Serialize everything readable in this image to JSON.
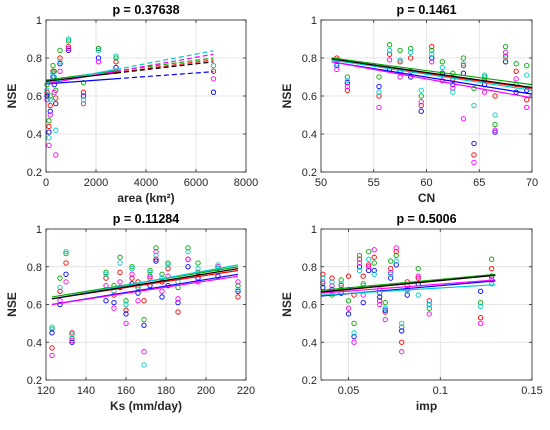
{
  "chart_data": [
    {
      "type": "scatter",
      "title": "p = 0.37638",
      "xlabel": "area (km²)",
      "ylabel": "NSE",
      "xlim": [
        0,
        8000
      ],
      "ylim": [
        0.2,
        1.0
      ],
      "xticks": [
        0,
        2000,
        4000,
        6000,
        8000
      ],
      "xtick_labels": [
        "0",
        "2000",
        "4000",
        "6000",
        "8000"
      ],
      "yticks": [
        0.2,
        0.4,
        0.6,
        0.8,
        1.0
      ],
      "ytick_labels": [
        "0.2",
        "0.4",
        "0.6",
        "0.8",
        "1"
      ],
      "grid": true,
      "x_positions": [
        40,
        120,
        170,
        280,
        330,
        390,
        560,
        900,
        1500,
        2100,
        2800,
        6700
      ],
      "series": [
        {
          "color": "#ff0000",
          "values": [
            0.62,
            0.44,
            0.55,
            0.73,
            0.68,
            0.59,
            0.8,
            0.86,
            0.62,
            0.85,
            0.78,
            0.73
          ]
        },
        {
          "color": "#00aa00",
          "values": [
            0.66,
            0.47,
            0.6,
            0.76,
            0.73,
            0.63,
            0.84,
            0.89,
            0.67,
            0.85,
            0.8,
            0.76
          ]
        },
        {
          "color": "#0000ff",
          "values": [
            0.6,
            0.41,
            0.52,
            0.7,
            0.66,
            0.56,
            0.77,
            0.84,
            0.6,
            0.8,
            0.75,
            0.62
          ]
        },
        {
          "color": "#ff00ff",
          "values": [
            0.58,
            0.34,
            0.5,
            0.68,
            0.62,
            0.29,
            0.73,
            0.85,
            0.56,
            0.78,
            0.73,
            0.69
          ]
        },
        {
          "color": "#00cccc",
          "values": [
            0.63,
            0.38,
            0.58,
            0.72,
            0.7,
            0.42,
            0.78,
            0.9,
            0.58,
            0.84,
            0.81,
            0.76
          ]
        }
      ],
      "fit_lines": [
        {
          "color": "#ff0000",
          "x": [
            0,
            6700
          ],
          "y": [
            0.676,
            0.79
          ],
          "dashed_from": 2800
        },
        {
          "color": "#00aa00",
          "x": [
            0,
            6700
          ],
          "y": [
            0.684,
            0.8
          ],
          "dashed_from": 2800
        },
        {
          "color": "#0000ff",
          "x": [
            0,
            6700
          ],
          "y": [
            0.664,
            0.728
          ],
          "dashed_from": 2800
        },
        {
          "color": "#ff00ff",
          "x": [
            0,
            6700
          ],
          "y": [
            0.664,
            0.82
          ],
          "dashed_from": 2800
        },
        {
          "color": "#00cccc",
          "x": [
            0,
            6700
          ],
          "y": [
            0.67,
            0.838
          ],
          "dashed_from": 2800
        },
        {
          "color": "#000000",
          "x": [
            0,
            6700
          ],
          "y": [
            0.678,
            0.78
          ],
          "dashed_from": 2800
        }
      ]
    },
    {
      "type": "scatter",
      "title": "p = 0.1461",
      "xlabel": "CN",
      "ylabel": "NSE",
      "xlim": [
        50,
        70
      ],
      "ylim": [
        0.2,
        1.0
      ],
      "xticks": [
        50,
        55,
        60,
        65,
        70
      ],
      "xtick_labels": [
        "50",
        "55",
        "60",
        "65",
        "70"
      ],
      "yticks": [
        0.2,
        0.4,
        0.6,
        0.8,
        1.0
      ],
      "ytick_labels": [
        "0.2",
        "0.4",
        "0.6",
        "0.8",
        "1"
      ],
      "grid": true,
      "x_positions": [
        51.5,
        52.5,
        55.5,
        56.5,
        57.5,
        58.5,
        59.5,
        60.5,
        61.5,
        62.5,
        63.5,
        64.5,
        65.5,
        66.5,
        67.5,
        68.5,
        69.5
      ],
      "series": [
        {
          "color": "#ff0000",
          "values": [
            0.8,
            0.63,
            0.6,
            0.82,
            0.78,
            0.8,
            0.55,
            0.86,
            0.71,
            0.69,
            0.76,
            0.29,
            0.68,
            0.6,
            0.81,
            0.73,
            0.58
          ]
        },
        {
          "color": "#00aa00",
          "values": [
            0.79,
            0.7,
            0.7,
            0.87,
            0.84,
            0.85,
            0.6,
            0.84,
            0.78,
            0.72,
            0.8,
            0.64,
            0.7,
            0.45,
            0.86,
            0.77,
            0.76
          ]
        },
        {
          "color": "#0000ff",
          "values": [
            0.76,
            0.67,
            0.65,
            0.74,
            0.73,
            0.7,
            0.52,
            0.8,
            0.72,
            0.66,
            0.72,
            0.35,
            0.66,
            0.41,
            0.78,
            0.62,
            0.63
          ]
        },
        {
          "color": "#ff00ff",
          "values": [
            0.74,
            0.65,
            0.54,
            0.79,
            0.7,
            0.73,
            0.57,
            0.78,
            0.68,
            0.64,
            0.48,
            0.25,
            0.62,
            0.42,
            0.83,
            0.69,
            0.54
          ]
        },
        {
          "color": "#00cccc",
          "values": [
            0.77,
            0.68,
            0.62,
            0.84,
            0.79,
            0.83,
            0.63,
            0.82,
            0.75,
            0.62,
            0.77,
            0.55,
            0.71,
            0.5,
            0.8,
            0.66,
            0.71
          ]
        }
      ],
      "fit_lines": [
        {
          "color": "#ff0000",
          "x": [
            51,
            70
          ],
          "y": [
            0.79,
            0.64
          ]
        },
        {
          "color": "#00aa00",
          "x": [
            51,
            70
          ],
          "y": [
            0.8,
            0.66
          ]
        },
        {
          "color": "#0000ff",
          "x": [
            51,
            70
          ],
          "y": [
            0.78,
            0.61
          ]
        },
        {
          "color": "#ff00ff",
          "x": [
            51,
            70
          ],
          "y": [
            0.78,
            0.59
          ]
        },
        {
          "color": "#00cccc",
          "x": [
            51,
            70
          ],
          "y": [
            0.79,
            0.63
          ]
        },
        {
          "color": "#000000",
          "x": [
            51,
            70
          ],
          "y": [
            0.795,
            0.645
          ]
        }
      ]
    },
    {
      "type": "scatter",
      "title": "p = 0.11284",
      "xlabel": "Ks (mm/day)",
      "ylabel": "NSE",
      "xlim": [
        120,
        220
      ],
      "ylim": [
        0.2,
        1.0
      ],
      "xticks": [
        120,
        140,
        160,
        180,
        200,
        220
      ],
      "xtick_labels": [
        "120",
        "140",
        "160",
        "180",
        "200",
        "220"
      ],
      "yticks": [
        0.2,
        0.4,
        0.6,
        0.8,
        1.0
      ],
      "ytick_labels": [
        "0.2",
        "0.4",
        "0.6",
        "0.8",
        "1"
      ],
      "grid": true,
      "x_positions": [
        123,
        127,
        130,
        133,
        150,
        154,
        157,
        160,
        163,
        166,
        169,
        172,
        175,
        178,
        181,
        186,
        191,
        196,
        206,
        216
      ],
      "series": [
        {
          "color": "#ff0000",
          "values": [
            0.37,
            0.67,
            0.82,
            0.45,
            0.74,
            0.65,
            0.77,
            0.57,
            0.74,
            0.72,
            0.62,
            0.75,
            0.84,
            0.72,
            0.79,
            0.56,
            0.84,
            0.77,
            0.8,
            0.64
          ]
        },
        {
          "color": "#00aa00",
          "values": [
            0.47,
            0.74,
            0.87,
            0.42,
            0.77,
            0.7,
            0.85,
            0.62,
            0.8,
            0.69,
            0.52,
            0.78,
            0.9,
            0.76,
            0.82,
            0.69,
            0.9,
            0.82,
            0.79,
            0.7
          ]
        },
        {
          "color": "#0000ff",
          "values": [
            0.45,
            0.6,
            0.76,
            0.4,
            0.62,
            0.61,
            0.69,
            0.55,
            0.71,
            0.66,
            0.49,
            0.7,
            0.83,
            0.64,
            0.7,
            0.61,
            0.8,
            0.74,
            0.75,
            0.67
          ]
        },
        {
          "color": "#ff00ff",
          "values": [
            0.33,
            0.62,
            0.72,
            0.41,
            0.7,
            0.58,
            0.72,
            0.5,
            0.76,
            0.62,
            0.35,
            0.74,
            0.88,
            0.67,
            0.75,
            0.63,
            0.84,
            0.72,
            0.8,
            0.72
          ]
        },
        {
          "color": "#00cccc",
          "values": [
            0.48,
            0.69,
            0.88,
            0.44,
            0.76,
            0.67,
            0.82,
            0.6,
            0.79,
            0.7,
            0.28,
            0.77,
            0.86,
            0.74,
            0.81,
            0.72,
            0.88,
            0.79,
            0.81,
            0.68
          ]
        }
      ],
      "fit_lines": [
        {
          "color": "#ff0000",
          "x": [
            123,
            216
          ],
          "y": [
            0.63,
            0.78
          ]
        },
        {
          "color": "#00aa00",
          "x": [
            123,
            216
          ],
          "y": [
            0.64,
            0.8
          ]
        },
        {
          "color": "#0000ff",
          "x": [
            123,
            216
          ],
          "y": [
            0.6,
            0.76
          ]
        },
        {
          "color": "#ff00ff",
          "x": [
            123,
            216
          ],
          "y": [
            0.6,
            0.75
          ]
        },
        {
          "color": "#00cccc",
          "x": [
            123,
            216
          ],
          "y": [
            0.63,
            0.81
          ]
        },
        {
          "color": "#000000",
          "x": [
            123,
            216
          ],
          "y": [
            0.63,
            0.79
          ]
        }
      ]
    },
    {
      "type": "scatter",
      "title": "p = 0.5006",
      "xlabel": "imp",
      "ylabel": "NSE",
      "xlim": [
        0.035,
        0.15
      ],
      "ylim": [
        0.2,
        1.0
      ],
      "xticks": [
        0.05,
        0.1,
        0.15
      ],
      "xtick_labels": [
        "0.05",
        "0.1",
        "0.15"
      ],
      "yticks": [
        0.2,
        0.4,
        0.6,
        0.8,
        1.0
      ],
      "ytick_labels": [
        "0.2",
        "0.4",
        "0.6",
        "0.8",
        "1"
      ],
      "grid": true,
      "x_positions": [
        0.036,
        0.041,
        0.046,
        0.05,
        0.053,
        0.056,
        0.058,
        0.061,
        0.064,
        0.067,
        0.07,
        0.073,
        0.076,
        0.079,
        0.082,
        0.088,
        0.094,
        0.122,
        0.128
      ],
      "series": [
        {
          "color": "#ff0000",
          "values": [
            0.76,
            0.74,
            0.7,
            0.75,
            0.65,
            0.84,
            0.75,
            0.81,
            0.85,
            0.62,
            0.56,
            0.79,
            0.88,
            0.4,
            0.72,
            0.74,
            0.62,
            0.53,
            0.79
          ]
        },
        {
          "color": "#00aa00",
          "values": [
            0.71,
            0.65,
            0.73,
            0.62,
            0.5,
            0.86,
            0.71,
            0.88,
            0.82,
            0.66,
            0.61,
            0.83,
            0.86,
            0.48,
            0.7,
            0.79,
            0.58,
            0.61,
            0.84
          ]
        },
        {
          "color": "#0000ff",
          "values": [
            0.69,
            0.68,
            0.66,
            0.55,
            0.43,
            0.8,
            0.61,
            0.78,
            0.78,
            0.64,
            0.57,
            0.74,
            0.81,
            0.46,
            0.65,
            0.71,
            0.6,
            0.67,
            0.75
          ]
        },
        {
          "color": "#ff00ff",
          "values": [
            0.72,
            0.7,
            0.68,
            0.58,
            0.4,
            0.82,
            0.65,
            0.8,
            0.89,
            0.6,
            0.52,
            0.77,
            0.9,
            0.35,
            0.68,
            0.75,
            0.55,
            0.5,
            0.73
          ]
        },
        {
          "color": "#00cccc",
          "values": [
            0.74,
            0.72,
            0.71,
            0.68,
            0.45,
            0.78,
            0.7,
            0.84,
            0.76,
            0.68,
            0.58,
            0.76,
            0.83,
            0.5,
            0.67,
            0.65,
            0.6,
            0.59,
            0.71
          ]
        }
      ],
      "fit_lines": [
        {
          "color": "#ff0000",
          "x": [
            0.035,
            0.13
          ],
          "y": [
            0.665,
            0.755
          ]
        },
        {
          "color": "#00aa00",
          "x": [
            0.035,
            0.13
          ],
          "y": [
            0.675,
            0.76
          ]
        },
        {
          "color": "#0000ff",
          "x": [
            0.035,
            0.13
          ],
          "y": [
            0.645,
            0.725
          ]
        },
        {
          "color": "#ff00ff",
          "x": [
            0.035,
            0.13
          ],
          "y": [
            0.66,
            0.73
          ]
        },
        {
          "color": "#00cccc",
          "x": [
            0.035,
            0.13
          ],
          "y": [
            0.65,
            0.705
          ]
        },
        {
          "color": "#000000",
          "x": [
            0.035,
            0.13
          ],
          "y": [
            0.667,
            0.755
          ]
        }
      ]
    }
  ]
}
